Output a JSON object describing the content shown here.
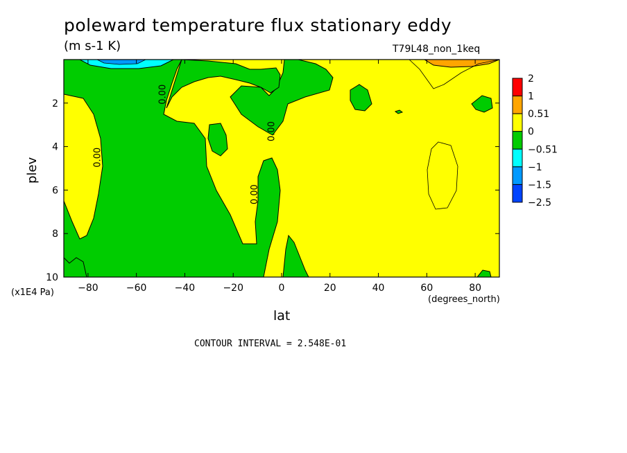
{
  "chart_data": {
    "type": "heatmap",
    "title": "poleward temperature flux stationary eddy",
    "units": "(m s-1 K)",
    "run_name": "T79L48_non_1keq",
    "xlabel": "lat",
    "xunits": "(degrees_north)",
    "ylabel": "plev",
    "yunits": "(x1E4 Pa)",
    "xlim": [
      -90,
      90
    ],
    "ylim": [
      0,
      10
    ],
    "y_inverted": true,
    "x_ticks": [
      -80,
      -60,
      -40,
      -20,
      0,
      20,
      40,
      60,
      80
    ],
    "y_ticks": [
      2,
      4,
      6,
      8,
      10
    ],
    "contour_interval": "CONTOUR INTERVAL = 2.548E-01",
    "contour_labels": [
      {
        "text": "0.00",
        "x": -48,
        "y": 1.6
      },
      {
        "text": "0.00",
        "x": -75,
        "y": 4.5
      },
      {
        "text": "0.00",
        "x": -3,
        "y": 3.3
      },
      {
        "text": "0.00",
        "x": -10,
        "y": 6.2
      }
    ],
    "colorbar": {
      "levels": [
        "2",
        "1",
        "0.51",
        "0",
        "-0.51",
        "-1",
        "-1.5",
        "-2.5"
      ],
      "colors": [
        "#ff0000",
        "#ffa500",
        "#ffff00",
        "#00cc00",
        "#00ffff",
        "#0099ff",
        "#0044ff"
      ]
    },
    "colors": {
      "positive": "#ffff00",
      "negative": "#00cc00"
    }
  }
}
